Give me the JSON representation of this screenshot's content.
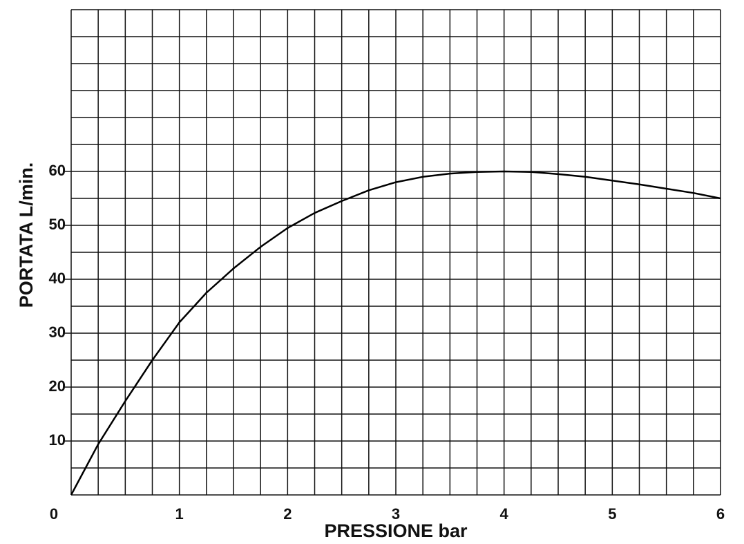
{
  "chart_data": {
    "type": "line",
    "x_label": "PRESSIONE bar",
    "y_label": "PORTATA  L/min.",
    "x": [
      0,
      0.25,
      0.5,
      0.75,
      1,
      1.25,
      1.5,
      1.75,
      2,
      2.25,
      2.5,
      2.75,
      3,
      3.25,
      3.5,
      3.75,
      4,
      4.25,
      4.5,
      4.75,
      5,
      5.25,
      5.5,
      5.75,
      6
    ],
    "series": [
      {
        "color": "#000000",
        "values": [
          0,
          9.4,
          17.4,
          25,
          32,
          37.5,
          42,
          46,
          49.5,
          52.3,
          54.5,
          56.5,
          58,
          59,
          59.6,
          59.9,
          60,
          59.9,
          59.5,
          59,
          58.3,
          57.6,
          56.8,
          56,
          55
        ]
      }
    ],
    "xlim": [
      0,
      6
    ],
    "ylim": [
      0,
      90
    ],
    "xticks": [
      0,
      1,
      2,
      3,
      4,
      5,
      6
    ],
    "yticks": [
      10,
      20,
      30,
      40,
      50,
      60
    ],
    "grid": true,
    "x_grid_step": 0.25,
    "y_grid_step": 5
  }
}
